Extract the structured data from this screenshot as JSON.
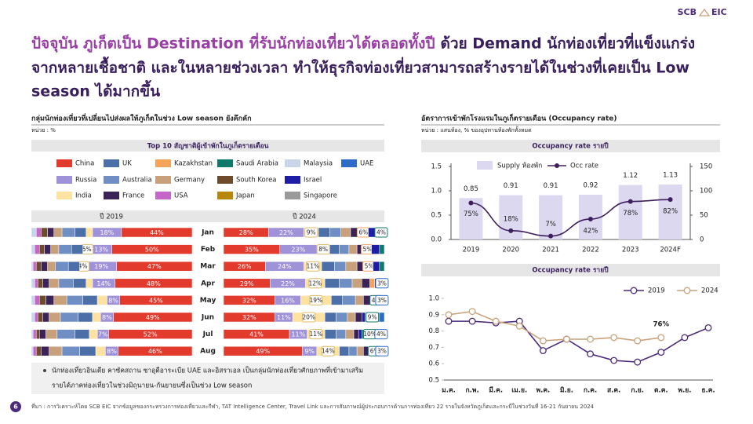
{
  "logo": {
    "left": "SCB",
    "right": "EIC"
  },
  "headline": {
    "parts": [
      "ปัจจุบัน ภูเก็ตเป็น Destination ที่รับนักท่องเที่ยวได้ตลอดทั้งปี",
      "ด้วย Demand นักท่องเที่ยวที่แข็งแกร่ง",
      "จากหลายเชื้อชาติ และในหลายช่วงเวลา ทำให้ธุรกิจท่องเที่ยวสามารถสร้างรายได้ในช่วงที่เคยเป็น Low",
      "season ได้มากขึ้น"
    ]
  },
  "left_panel": {
    "title": "กลุ่มนักท่องเที่ยวที่เปลี่ยนไปส่งผลให้ภูเก็ตในช่วง Low season ยังคึกคัก",
    "unit": "หน่วย : %",
    "note": [
      "นักท่องเที่ยวอินเดีย คาซัคสถาน ซาอุดีอาระเบีย UAE และอิสราเอล เป็นกลุ่มนักท่องเที่ยวศักยภาพที่เข้ามาเสริม",
      "รายได้ภาคท่องเที่ยวในช่วงมิถุนายน-กันยายนซึ่งเป็นช่วง Low season"
    ]
  },
  "right_panel": {
    "title": "อัตราการเข้าพักโรงแรมในภูเก็ตรายเดือน (Occupancy rate)",
    "unit": "หน่วย : แสนห้อง, % ของอุปทานห้องพักทั้งหมด"
  },
  "footer": {
    "page": "6",
    "source": "ที่มา : การวิเคราะห์โดย SCB EIC จากข้อมูลของกระทรวงการท่องเที่ยวและกีฬา, TAT Intelligence Center, Travel Link และการสัมภาษณ์ผู้ประกอบการด้านการท่องเที่ยว 22 รายในจังหวัดภูเก็ตและกระบี่ในช่วงวันที่ 16-21 กันยายน 2024"
  },
  "chart_data": [
    {
      "type": "stacked_hbar",
      "title": "Top 10 สัญชาติผู้เข้าพักในภูเก็ตรายเดือน",
      "panel_title": "ปี 2019",
      "xlim": [
        0,
        100
      ],
      "categories": [
        "Jan",
        "Feb",
        "Mar",
        "Apr",
        "May",
        "Jun",
        "Jul",
        "Aug"
      ],
      "series": [
        {
          "name": "China",
          "color": "#e23b2e",
          "values": [
            44,
            50,
            47,
            48,
            45,
            49,
            52,
            46
          ],
          "value_labels": [
            "44%",
            "50%",
            "47%",
            "48%",
            "45%",
            "49%",
            "52%",
            "46%"
          ]
        },
        {
          "name": "Russia",
          "color": "#9f92d8",
          "values": [
            18,
            13,
            19,
            14,
            8,
            8,
            7,
            8
          ],
          "value_labels": [
            "18%",
            "13%",
            "19%",
            "14%",
            "8%",
            "8%",
            "7%",
            "8%"
          ]
        },
        {
          "name": "India",
          "color": "#fde2a2",
          "values": [
            4,
            5,
            4,
            4,
            6,
            5,
            5,
            6
          ],
          "value_labels": [
            null,
            "5%",
            "4%",
            null,
            null,
            null,
            null,
            null
          ]
        },
        {
          "name": "UK",
          "color": "#4d6fa8",
          "values": [
            7,
            7,
            7,
            8,
            9,
            9,
            9,
            10
          ]
        },
        {
          "name": "Australia",
          "color": "#6f8fc4",
          "values": [
            8,
            8,
            8,
            9,
            10,
            11,
            11,
            11
          ]
        },
        {
          "name": "Germany",
          "color": "#c9a07c",
          "values": [
            5,
            5,
            5,
            6,
            8,
            7,
            7,
            8
          ]
        },
        {
          "name": "France",
          "color": "#3b2257",
          "values": [
            4,
            4,
            4,
            4,
            5,
            4,
            4,
            5
          ]
        },
        {
          "name": "South Korea",
          "color": "#6e4b2c",
          "values": [
            4,
            3,
            3,
            3,
            4,
            3,
            2,
            3
          ]
        },
        {
          "name": "USA",
          "color": "#c566c9",
          "values": [
            3,
            3,
            2,
            2,
            3,
            2,
            2,
            2
          ]
        },
        {
          "name": "Malaysia",
          "color": "#c8d4e8",
          "values": [
            3,
            2,
            1,
            2,
            2,
            2,
            1,
            1
          ]
        },
        {
          "name": "Kazakhstan",
          "color": "#f5a35c",
          "values": [
            null,
            null,
            null,
            null,
            null,
            null,
            null,
            null
          ]
        },
        {
          "name": "Israel",
          "color": "#1d1da6",
          "values": [
            null,
            null,
            null,
            null,
            null,
            null,
            null,
            null
          ]
        },
        {
          "name": "Saudi Arabia",
          "color": "#0e7a6b",
          "values": [
            null,
            null,
            null,
            null,
            null,
            null,
            null,
            null
          ]
        },
        {
          "name": "UAE",
          "color": "#2c6cc6",
          "values": [
            null,
            null,
            null,
            null,
            null,
            null,
            null,
            null
          ]
        },
        {
          "name": "Japan",
          "color": "#b8860b",
          "values": [
            null,
            null,
            null,
            null,
            null,
            null,
            null,
            null
          ]
        },
        {
          "name": "Singapore",
          "color": "#9a9a9a",
          "values": [
            null,
            null,
            null,
            null,
            null,
            null,
            null,
            null
          ]
        }
      ]
    },
    {
      "type": "stacked_hbar",
      "panel_title": "ปี 2024",
      "xlim": [
        0,
        100
      ],
      "series": [
        {
          "values": [
            28,
            35,
            26,
            29,
            32,
            32,
            41,
            49
          ],
          "value_labels": [
            "28%",
            "35%",
            "26%",
            "29%",
            "32%",
            "32%",
            "41%",
            "49%"
          ]
        },
        {
          "values": [
            22,
            23,
            24,
            22,
            16,
            11,
            11,
            9
          ],
          "value_labels": [
            "22%",
            "23%",
            "24%",
            "22%",
            "16%",
            "11%",
            "11%",
            "9%"
          ]
        },
        {
          "values": [
            9,
            8,
            11,
            12,
            19,
            20,
            11,
            14
          ],
          "value_labels": [
            "9%",
            "8%",
            "11%",
            "12%",
            "19%",
            "20%",
            "11%",
            "14%"
          ]
        },
        {
          "values": [
            7,
            6,
            8,
            9,
            7,
            7,
            7,
            6
          ]
        },
        {
          "values": [
            7,
            6,
            7,
            8,
            8,
            7,
            6,
            5
          ]
        },
        {
          "values": [
            6,
            5,
            7,
            6,
            5,
            5,
            5,
            4
          ]
        },
        {
          "values": [
            5,
            4,
            5,
            5,
            5,
            4,
            3,
            3
          ]
        },
        {
          "values": [
            null,
            null,
            null,
            null,
            null,
            null,
            null,
            null
          ]
        },
        {
          "values": [
            null,
            null,
            null,
            null,
            null,
            null,
            null,
            null
          ]
        },
        {
          "values": [
            null,
            null,
            null,
            null,
            null,
            null,
            null,
            null
          ]
        },
        {
          "values": [
            6,
            5,
            5,
            3,
            null,
            null,
            null,
            null
          ],
          "value_labels": [
            "6%",
            "5%",
            "5%",
            null,
            null,
            null,
            null,
            null
          ]
        },
        {
          "values": [
            6,
            5,
            4,
            3,
            1,
            2,
            2,
            1
          ]
        },
        {
          "values": [
            4,
            3,
            3,
            null,
            4,
            9,
            10,
            6
          ],
          "value_labels": [
            "4%",
            null,
            null,
            null,
            "4%",
            "9%",
            "10%",
            "6%"
          ]
        },
        {
          "values": [
            null,
            null,
            null,
            3,
            3,
            3,
            4,
            3
          ],
          "value_labels": [
            null,
            null,
            null,
            "3%",
            "3%",
            null,
            "4%",
            "3%"
          ]
        },
        {
          "values": [
            null,
            null,
            null,
            null,
            null,
            null,
            null,
            null
          ]
        },
        {
          "values": [
            null,
            null,
            null,
            null,
            null,
            null,
            null,
            null
          ]
        }
      ]
    },
    {
      "type": "bar_line",
      "title": "Occupancy rate รายปี",
      "categories": [
        "2019",
        "2020",
        "2021",
        "2022",
        "2023",
        "2024F"
      ],
      "ylim": [
        0,
        1.5
      ],
      "yticks": [
        {
          "value": 0,
          "label": "0.0"
        },
        0.5,
        {
          "value": 1,
          "label": "1.0"
        },
        1.5
      ],
      "y2lim": [
        0,
        150
      ],
      "y2ticks": [
        0,
        50,
        100,
        150
      ],
      "series": [
        {
          "name": "Supply ห้องพัก",
          "color": "#dcd8ef",
          "values": [
            0.85,
            0.91,
            0.91,
            0.92,
            1.12,
            1.13
          ]
        },
        {
          "name": "Occ rate",
          "color": "#3f1e5e",
          "axis": "y2",
          "values": [
            75,
            18,
            7,
            42,
            78,
            82
          ],
          "value_labels": [
            "75%",
            "18%",
            "7%",
            "42%",
            "78%",
            "82%"
          ]
        }
      ]
    },
    {
      "type": "line",
      "title": "Occupancy rate รายปี",
      "categories": [
        "ม.ค.",
        "ก.พ.",
        "มี.ค.",
        "เม.ย.",
        "พ.ค.",
        "มิ.ย.",
        "ก.ค.",
        "ส.ค.",
        "ก.ย.",
        "ต.ค.",
        "พ.ย.",
        "ธ.ค."
      ],
      "ylim": [
        0.5,
        1
      ],
      "yticks": [
        0.5,
        0.6,
        0.7,
        0.8,
        0.9,
        {
          "value": 1,
          "label": "1.0"
        }
      ],
      "series": [
        {
          "name": "2019",
          "color": "#4b2a7b",
          "values": [
            0.86,
            0.86,
            0.85,
            0.86,
            0.68,
            0.75,
            0.66,
            0.62,
            0.61,
            0.67,
            0.76,
            0.82
          ]
        },
        {
          "name": "2024",
          "color": "#c8a27a",
          "values": [
            0.9,
            0.92,
            0.86,
            0.83,
            0.74,
            0.75,
            0.75,
            0.76,
            0.74,
            0.76,
            null,
            null
          ]
        }
      ],
      "annotations": [
        {
          "text": "76%"
        }
      ]
    }
  ]
}
